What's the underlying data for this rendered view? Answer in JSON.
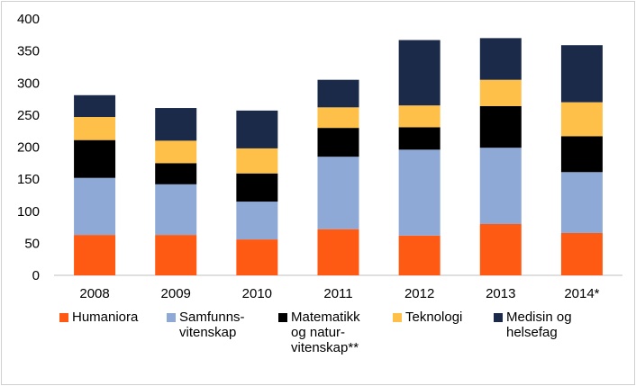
{
  "chart_data": {
    "type": "bar",
    "stacked": true,
    "title": "",
    "xlabel": "",
    "ylabel": "",
    "categories": [
      "2008",
      "2009",
      "2010",
      "2011",
      "2012",
      "2013",
      "2014*"
    ],
    "ylim": [
      0,
      400
    ],
    "yticks": [
      0,
      50,
      100,
      150,
      200,
      250,
      300,
      350,
      400
    ],
    "grid": false,
    "legend_position": "bottom",
    "series": [
      {
        "name": "Humaniora",
        "legend_lines": [
          "Humaniora"
        ],
        "color": "#FF5A14",
        "values": [
          63,
          63,
          56,
          72,
          62,
          80,
          66
        ]
      },
      {
        "name": "Samfunns-vitenskap",
        "legend_lines": [
          "Samfunns-",
          "vitenskap"
        ],
        "color": "#8EA9D6",
        "values": [
          89,
          79,
          59,
          113,
          134,
          119,
          95
        ]
      },
      {
        "name": "Matematikk og natur-vitenskap**",
        "legend_lines": [
          "Matematikk",
          "og natur-",
          "vitenskap**"
        ],
        "color": "#000000",
        "values": [
          59,
          33,
          44,
          45,
          35,
          65,
          56
        ]
      },
      {
        "name": "Teknologi",
        "legend_lines": [
          "Teknologi"
        ],
        "color": "#FFC04A",
        "values": [
          36,
          35,
          39,
          32,
          34,
          41,
          53
        ]
      },
      {
        "name": "Medisin og helsefag",
        "legend_lines": [
          "Medisin og",
          "helsefag"
        ],
        "color": "#1B2A49",
        "values": [
          34,
          51,
          59,
          43,
          102,
          65,
          89
        ]
      }
    ]
  }
}
